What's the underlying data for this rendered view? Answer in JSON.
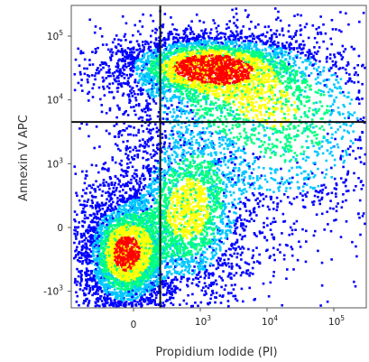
{
  "chart_data": {
    "type": "scatter",
    "title": "",
    "xlabel": "Propidium Iodide (PI)",
    "ylabel": "Annexin V APC",
    "x_scale": "biexponential",
    "y_scale": "biexponential",
    "x_ticks": [
      {
        "value": 0,
        "base": "0",
        "exp": ""
      },
      {
        "value": 1000,
        "base": "10",
        "exp": "3"
      },
      {
        "value": 10000,
        "base": "10",
        "exp": "4"
      },
      {
        "value": 100000,
        "base": "10",
        "exp": "5"
      }
    ],
    "y_ticks": [
      {
        "value": 100000,
        "base": "10",
        "exp": "5"
      },
      {
        "value": 10000,
        "base": "10",
        "exp": "4"
      },
      {
        "value": 1000,
        "base": "10",
        "exp": "3"
      },
      {
        "value": 0,
        "base": "0",
        "exp": ""
      },
      {
        "value": -1000,
        "base": "-10",
        "exp": "3"
      }
    ],
    "quadrant_gates": {
      "x": 400,
      "y": 4500
    },
    "density_colormap": [
      "#0000ff",
      "#00c8ff",
      "#00ff80",
      "#ffff00",
      "#ff0000"
    ],
    "populations": [
      {
        "x_center": 0,
        "y_center": -400,
        "density": "high"
      },
      {
        "x_center": 800,
        "y_center": 35000,
        "density": "high"
      },
      {
        "x_center": 800,
        "y_center": 0,
        "density": "medium"
      },
      {
        "x_center": 20000,
        "y_center": 3000,
        "density": "low"
      }
    ],
    "grid": false,
    "legend": "none"
  }
}
